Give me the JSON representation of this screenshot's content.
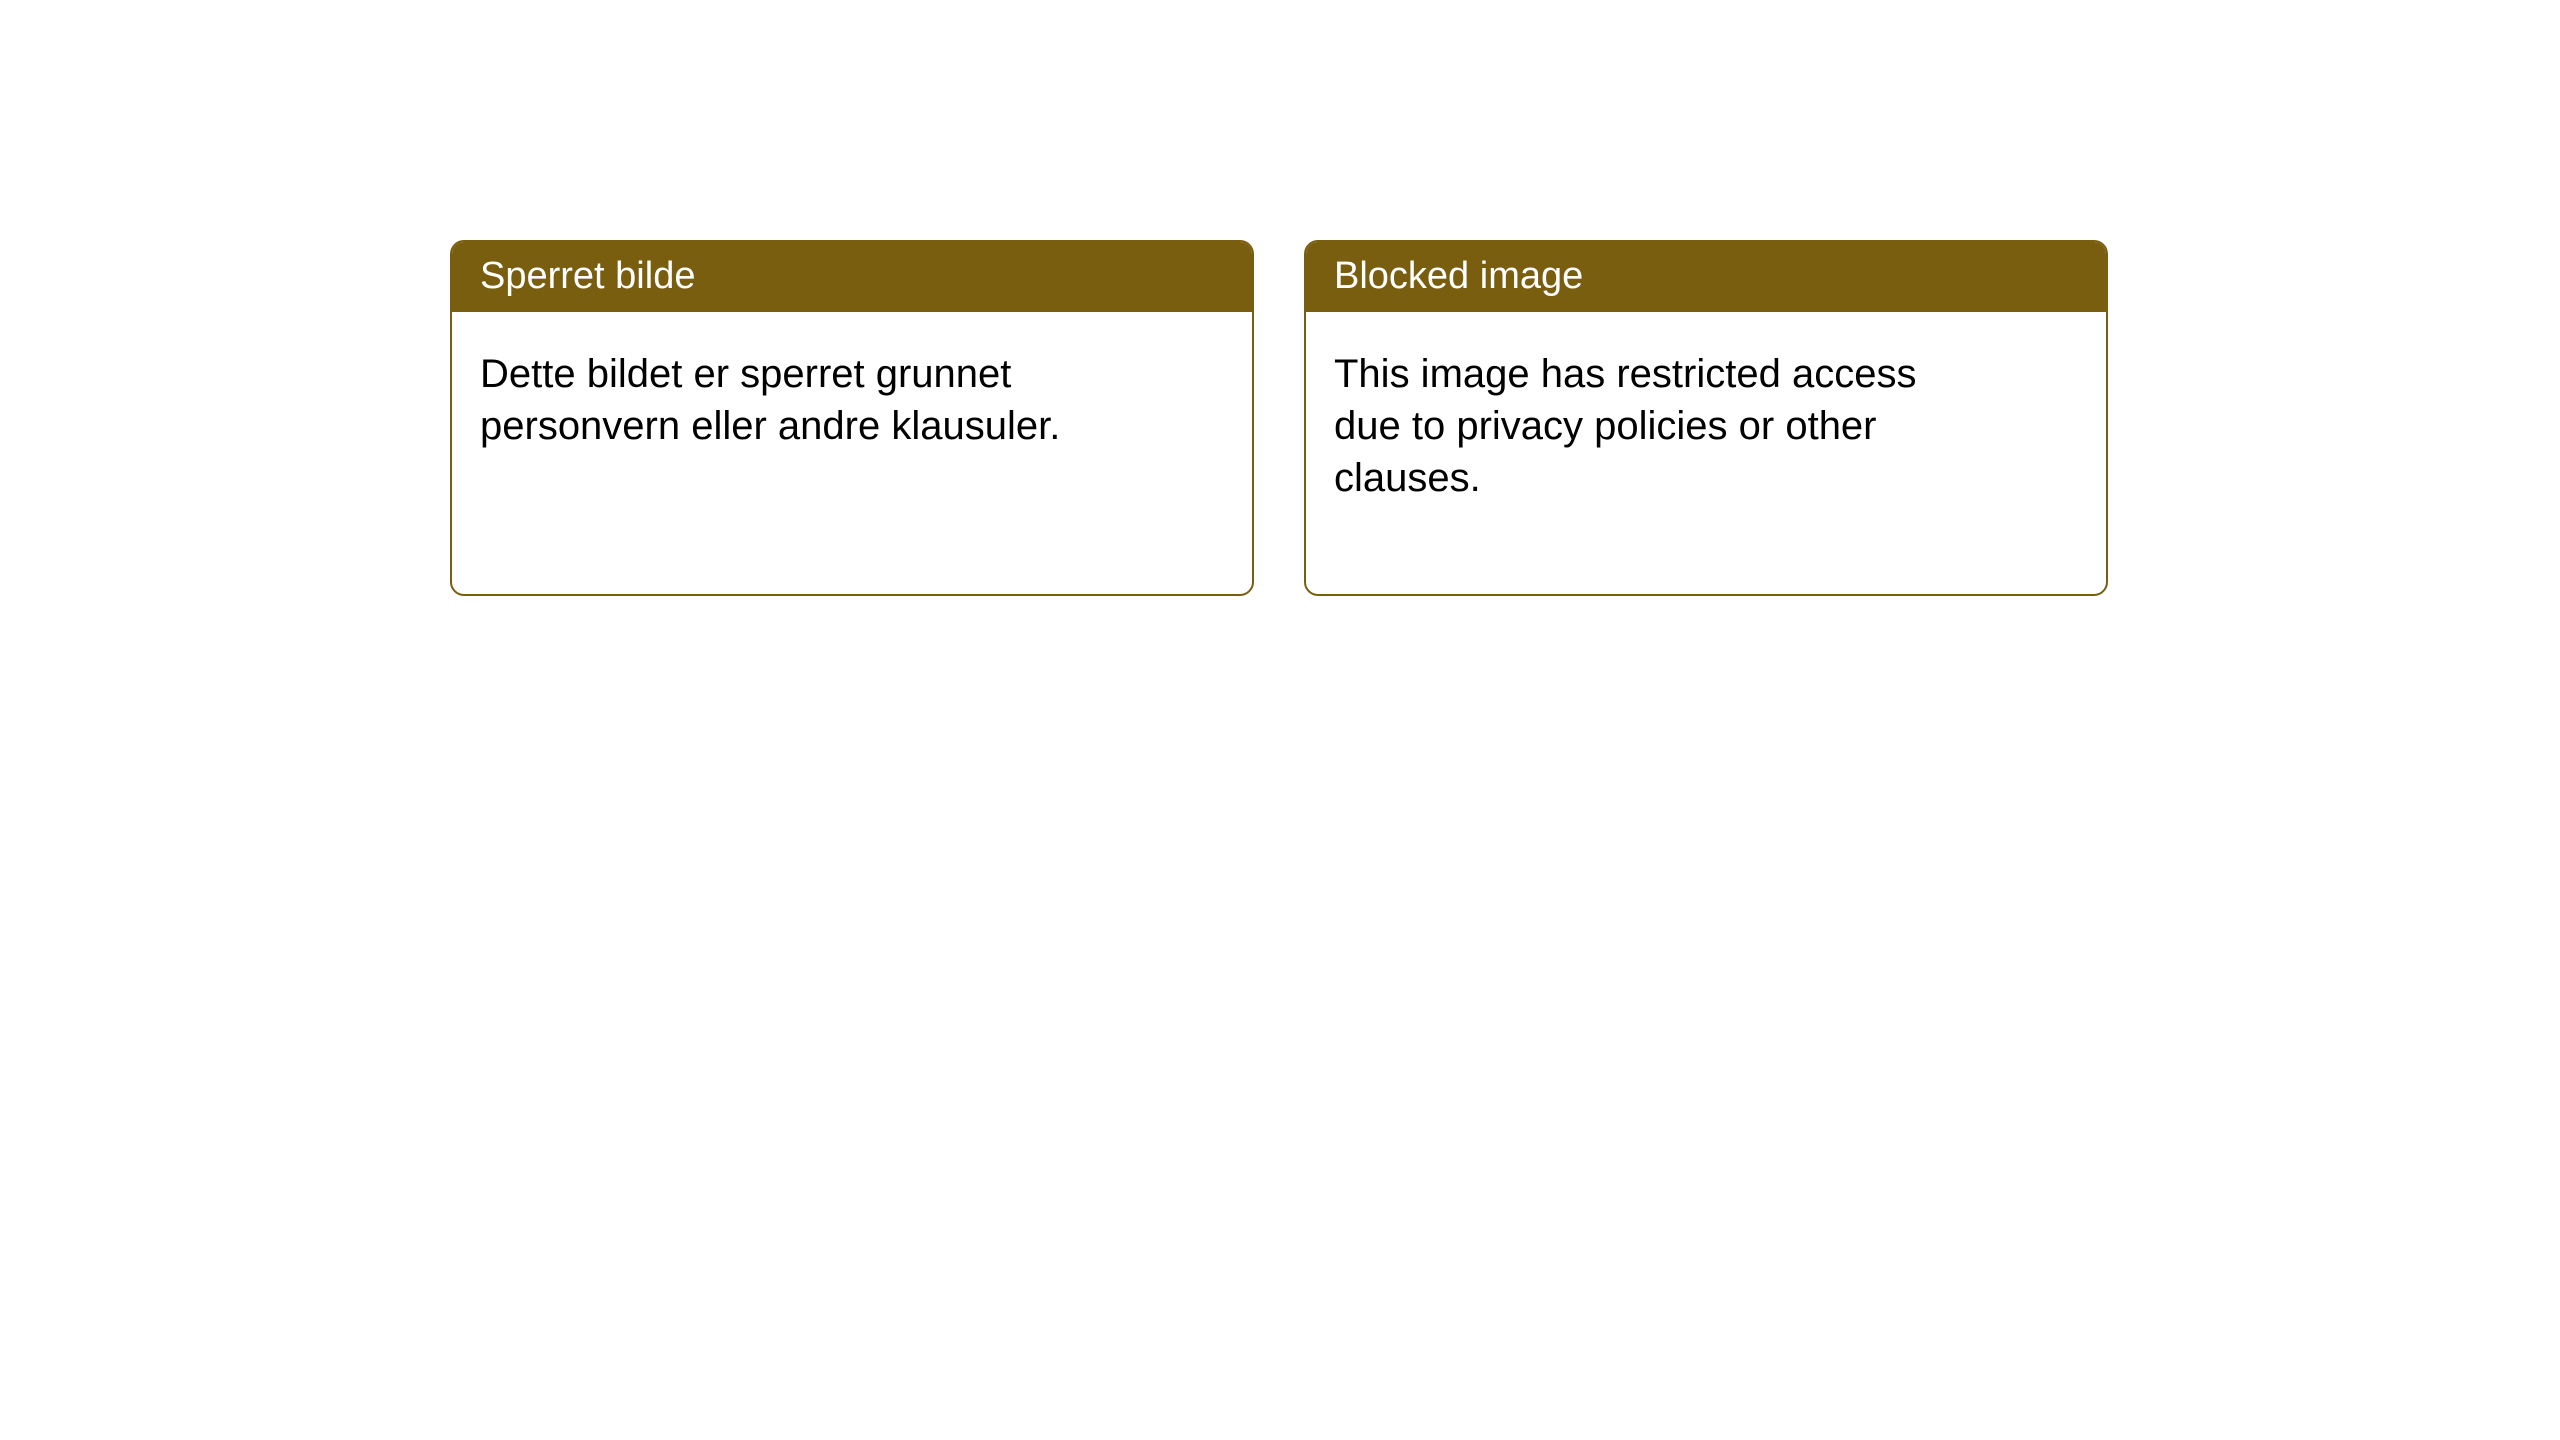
{
  "layout": {
    "background_color": "#ffffff",
    "card_border_color": "#7a5e10",
    "card_header_bg": "#7a5e10",
    "card_header_text_color": "#ffffff",
    "card_body_text_color": "#000000",
    "card_border_radius": 14,
    "header_fontsize": 38,
    "body_fontsize": 40
  },
  "notices": {
    "left": {
      "title": "Sperret bilde",
      "body": "Dette bildet er sperret grunnet personvern eller andre klausuler."
    },
    "right": {
      "title": "Blocked image",
      "body": "This image has restricted access due to privacy policies or other clauses."
    }
  }
}
